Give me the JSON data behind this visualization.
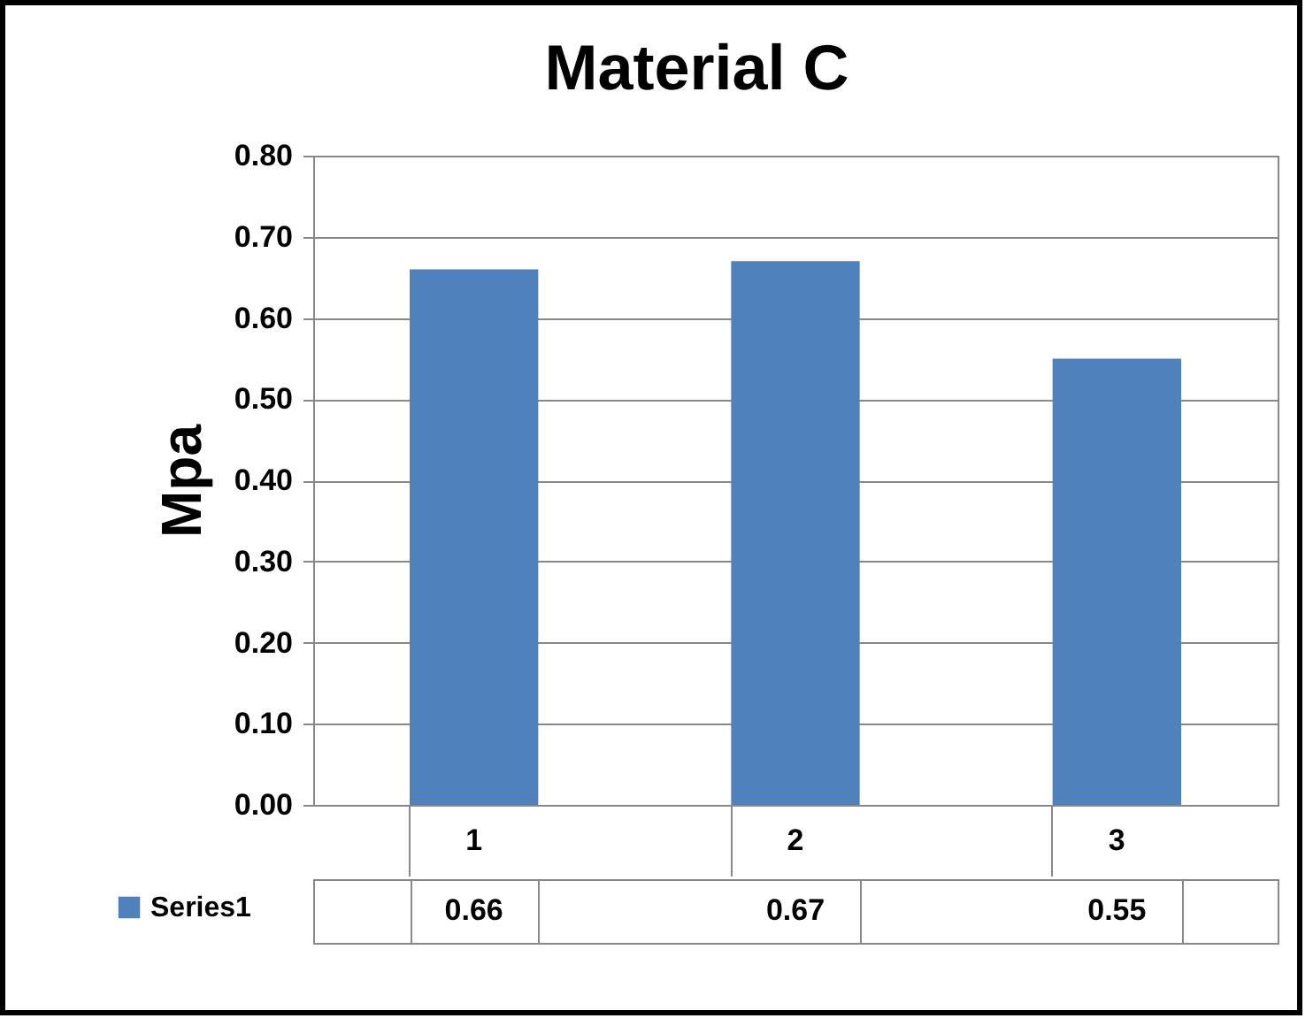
{
  "chart_data": {
    "type": "bar",
    "title": "Material C",
    "ylabel": "Mpa",
    "categories": [
      "1",
      "2",
      "3"
    ],
    "series": [
      {
        "name": "Series1",
        "color": "#4f81bd",
        "values": [
          0.66,
          0.67,
          0.55
        ]
      }
    ],
    "ylim": [
      0,
      0.8
    ],
    "yticks": [
      {
        "value": 0,
        "label": "0.00"
      },
      {
        "value": 0.1,
        "label": "0.10"
      },
      {
        "value": 0.2,
        "label": "0.20"
      },
      {
        "value": 0.3,
        "label": "0.30"
      },
      {
        "value": 0.4,
        "label": "0.40"
      },
      {
        "value": 0.5,
        "label": "0.50"
      },
      {
        "value": 0.6,
        "label": "0.60"
      },
      {
        "value": 0.7,
        "label": "0.70"
      },
      {
        "value": 0.8,
        "label": "0.80"
      }
    ],
    "grid": "y",
    "legend": "bottom",
    "data_labels": true
  }
}
